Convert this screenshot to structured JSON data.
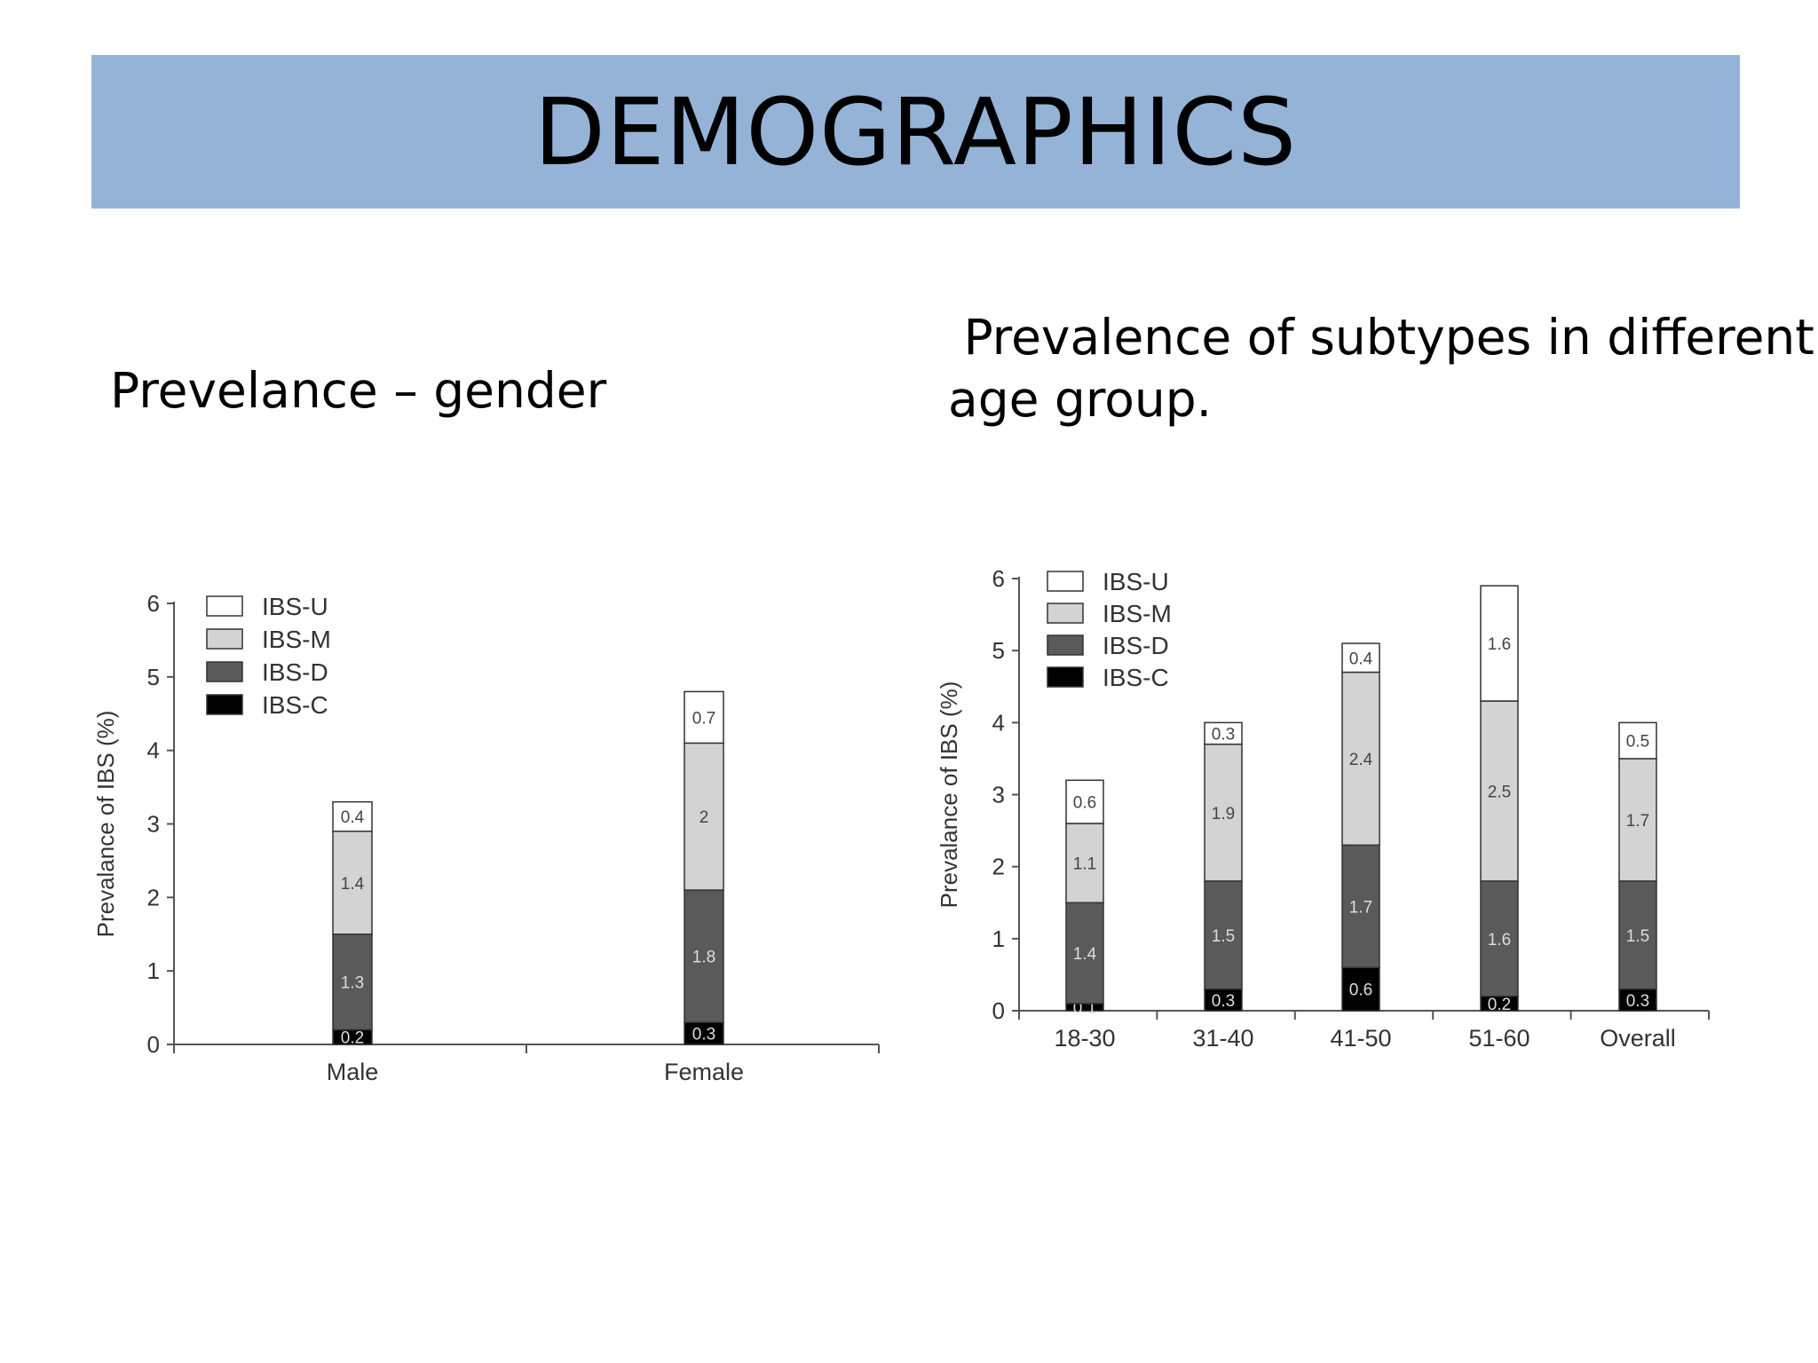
{
  "banner": {
    "title": "DEMOGRAPHICS"
  },
  "left": {
    "heading": "Prevelance – gender"
  },
  "right": {
    "heading_line1": " Prevalence of subtypes in different",
    "heading_line2": "age group."
  },
  "chart_data": [
    {
      "type": "bar",
      "stacked": true,
      "categories": [
        "Male",
        "Female"
      ],
      "ylabel": "Prevalance of IBS (%)",
      "ylim": [
        0,
        6
      ],
      "yticks": [
        0,
        1,
        2,
        3,
        4,
        5,
        6
      ],
      "legend": [
        "IBS-U",
        "IBS-M",
        "IBS-D",
        "IBS-C"
      ],
      "legend_position": "top-left",
      "series": [
        {
          "name": "IBS-C",
          "color": "#000000",
          "values": [
            0.2,
            0.3
          ],
          "labels": [
            "0.2",
            "0.3"
          ]
        },
        {
          "name": "IBS-D",
          "color": "#5a5a5a",
          "values": [
            1.3,
            1.8
          ],
          "labels": [
            "1.3",
            "1.8"
          ]
        },
        {
          "name": "IBS-M",
          "color": "#d3d3d3",
          "values": [
            1.4,
            2
          ],
          "labels": [
            "1.4",
            "2"
          ]
        },
        {
          "name": "IBS-U",
          "color": "#ffffff",
          "values": [
            0.4,
            0.7
          ],
          "labels": [
            "0.4",
            "0.7"
          ]
        }
      ]
    },
    {
      "type": "bar",
      "stacked": true,
      "categories": [
        "18-30",
        "31-40",
        "41-50",
        "51-60",
        "Overall"
      ],
      "ylabel": "Prevalance of IBS (%)",
      "ylim": [
        0,
        6
      ],
      "yticks": [
        0,
        1,
        2,
        3,
        4,
        5,
        6
      ],
      "legend": [
        "IBS-U",
        "IBS-M",
        "IBS-D",
        "IBS-C"
      ],
      "legend_position": "top-left",
      "series": [
        {
          "name": "IBS-C",
          "color": "#000000",
          "values": [
            0.1,
            0.3,
            0.6,
            0.2,
            0.3
          ],
          "labels": [
            "0.1",
            "0.3",
            "0.6",
            "0.2",
            "0.3"
          ]
        },
        {
          "name": "IBS-D",
          "color": "#5a5a5a",
          "values": [
            1.4,
            1.5,
            1.7,
            1.6,
            1.5
          ],
          "labels": [
            "1.4",
            "1.5",
            "1.7",
            "1.6",
            "1.5"
          ]
        },
        {
          "name": "IBS-M",
          "color": "#d3d3d3",
          "values": [
            1.1,
            1.9,
            2.4,
            2.5,
            1.7
          ],
          "labels": [
            "1.1",
            "1.9",
            "2.4",
            "2.5",
            "1.7"
          ]
        },
        {
          "name": "IBS-U",
          "color": "#ffffff",
          "values": [
            0.6,
            0.3,
            0.4,
            1.6,
            0.5
          ],
          "labels": [
            "0.6",
            "0.3",
            "0.4",
            "1.6",
            "0.5"
          ]
        }
      ]
    }
  ]
}
